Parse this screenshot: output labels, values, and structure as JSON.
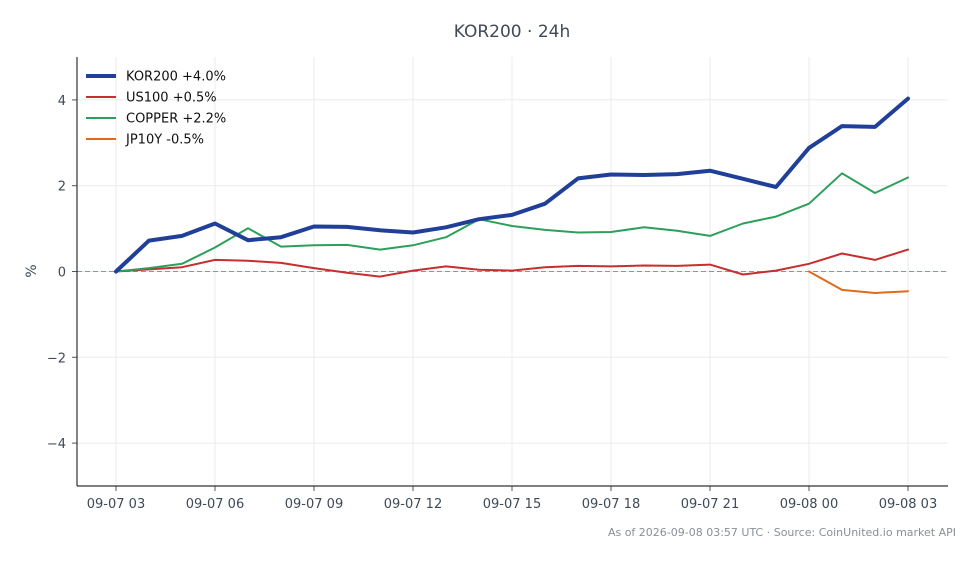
{
  "chart_data": {
    "type": "line",
    "title": "KOR200 · 24h",
    "xlabel": "",
    "ylabel": "%",
    "ylim": [
      -5,
      5
    ],
    "yticks": [
      -4,
      -2,
      0,
      2,
      4
    ],
    "ytick_labels": [
      "−4",
      "−2",
      "0",
      "2",
      "4"
    ],
    "x": [
      "09-07 03",
      "09-07 04",
      "09-07 05",
      "09-07 06",
      "09-07 07",
      "09-07 08",
      "09-07 09",
      "09-07 10",
      "09-07 11",
      "09-07 12",
      "09-07 13",
      "09-07 14",
      "09-07 15",
      "09-07 16",
      "09-07 17",
      "09-07 18",
      "09-07 19",
      "09-07 20",
      "09-07 21",
      "09-07 22",
      "09-07 23",
      "09-08 00",
      "09-08 01",
      "09-08 02",
      "09-08 03"
    ],
    "xtick_labels": [
      "09-07 03",
      "09-07 06",
      "09-07 09",
      "09-07 12",
      "09-07 15",
      "09-07 18",
      "09-07 21",
      "09-08 00",
      "09-08 03"
    ],
    "xtick_index": [
      0,
      3,
      6,
      9,
      12,
      15,
      18,
      21,
      24
    ],
    "grid": true,
    "zero_line": true,
    "legend": "top-left",
    "series": [
      {
        "name": "KOR200 +4.0%",
        "color": "#1f3f99",
        "width": 4,
        "values": [
          0.0,
          0.72,
          0.83,
          1.12,
          0.73,
          0.8,
          1.05,
          1.04,
          0.96,
          0.91,
          1.03,
          1.22,
          1.32,
          1.58,
          2.17,
          2.26,
          2.25,
          2.27,
          2.35,
          2.16,
          1.97,
          2.88,
          3.39,
          3.37,
          4.03
        ]
      },
      {
        "name": "US100 +0.5%",
        "color": "#c62f2f",
        "width": 2,
        "values": [
          0.0,
          0.05,
          0.1,
          0.27,
          0.25,
          0.2,
          0.08,
          -0.03,
          -0.12,
          0.02,
          0.12,
          0.04,
          0.02,
          0.1,
          0.13,
          0.12,
          0.14,
          0.13,
          0.16,
          -0.07,
          0.02,
          0.18,
          0.42,
          0.27,
          0.51
        ]
      },
      {
        "name": "COPPER +2.2%",
        "color": "#2ca05a",
        "width": 2,
        "values": [
          0.0,
          0.08,
          0.18,
          0.56,
          1.01,
          0.58,
          0.61,
          0.62,
          0.51,
          0.61,
          0.8,
          1.22,
          1.06,
          0.97,
          0.91,
          0.92,
          1.03,
          0.95,
          0.83,
          1.12,
          1.28,
          1.58,
          2.29,
          1.83,
          2.19
        ]
      },
      {
        "name": "JP10Y -0.5%",
        "color": "#e06a1b",
        "width": 2,
        "values": [
          null,
          null,
          null,
          null,
          null,
          null,
          null,
          null,
          null,
          null,
          null,
          null,
          null,
          null,
          null,
          null,
          null,
          null,
          null,
          null,
          null,
          0.0,
          -0.43,
          -0.5,
          -0.46
        ]
      }
    ]
  },
  "footer": "As of 2026-09-08 03:57 UTC · Source: CoinUnited.io market API"
}
